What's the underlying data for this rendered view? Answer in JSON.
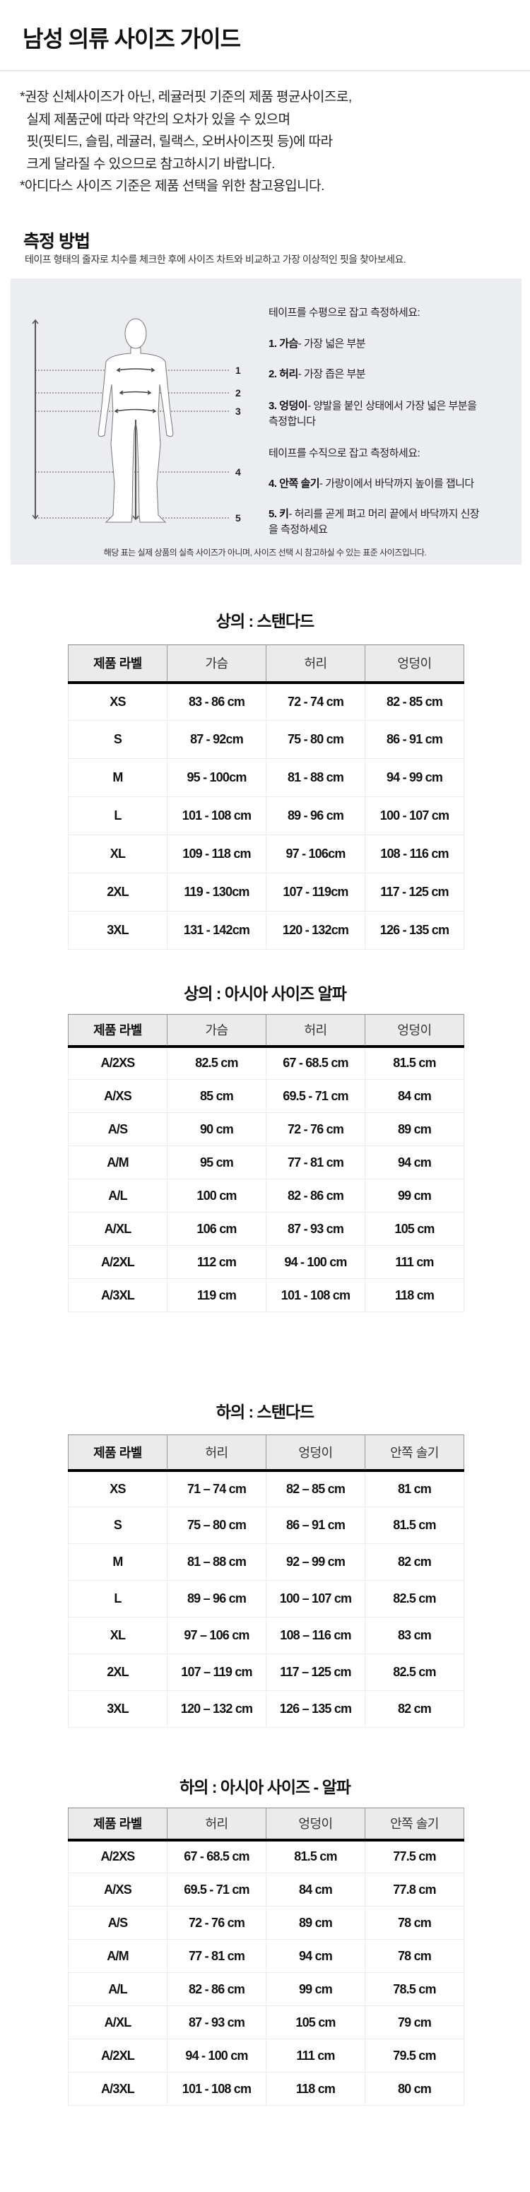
{
  "header": {
    "title": "남성 의류 사이즈 가이드"
  },
  "notes": [
    "*권장 신체사이즈가 아닌, 레귤러핏 기준의 제품 평균사이즈로,",
    "  실제 제품군에 따라 약간의 오차가 있을 수 있으며",
    "  핏(핏티드, 슬림, 레귤러, 릴랙스, 오버사이즈핏 등)에 따라",
    "  크게 달라질 수 있으므로 참고하시기 바랍니다.",
    "*아디다스 사이즈 기준은 제품 선택을 위한 참고용입니다."
  ],
  "method": {
    "title": "측정 방법",
    "subtitle": "테이프 형태의 줄자로 치수를 체크한 후에 사이즈 차트와 비교하고 가장 이상적인 핏을 찾아보세요.",
    "horizontal_intro": "테이프를 수평으로 잡고 측정하세요:",
    "vertical_intro": "테이프를 수직으로 잡고 측정하세요:",
    "items": [
      {
        "label": "1. 가슴",
        "desc": "- 가장 넓은 부분"
      },
      {
        "label": "2. 허리",
        "desc": "- 가장 좁은 부분"
      },
      {
        "label": "3. 엉덩이",
        "desc": "- 양발을 붙인 상태에서 가장 넓은 부분을 측정합니다"
      },
      {
        "label": "4. 안쪽 솔기",
        "desc": "- 가랑이에서 바닥까지 높이를 잽니다"
      },
      {
        "label": "5. 키",
        "desc": "- 허리를 곧게 펴고 머리 끝에서 바닥까지 신장을 측정하세요"
      }
    ],
    "figure_markers": [
      "1",
      "2",
      "3",
      "4",
      "5"
    ],
    "footnote": "해당 표는 실제 상품의 실측 사이즈가 아니며, 사이즈 선택 시 참고하실 수 있는 표준 사이즈입니다."
  },
  "tables": [
    {
      "title": "상의 : 스탠다드",
      "headers": [
        "제품 라벨",
        "가슴",
        "허리",
        "엉덩이"
      ],
      "rows": [
        [
          "XS",
          "83 - 86 cm",
          "72 - 74 cm",
          "82 - 85 cm"
        ],
        [
          "S",
          "87 - 92cm",
          "75 - 80 cm",
          "86 - 91 cm"
        ],
        [
          "M",
          "95 - 100cm",
          "81 - 88 cm",
          "94 - 99 cm"
        ],
        [
          "L",
          "101 - 108 cm",
          "89 - 96 cm",
          "100 - 107 cm"
        ],
        [
          "XL",
          "109 - 118 cm",
          "97 - 106cm",
          "108 - 116 cm"
        ],
        [
          "2XL",
          "119 - 130cm",
          "107 - 119cm",
          "117 - 125 cm"
        ],
        [
          "3XL",
          "131 - 142cm",
          "120 - 132cm",
          "126 - 135 cm"
        ]
      ]
    },
    {
      "title": "상의 : 아시아 사이즈 알파",
      "headers": [
        "제품 라벨",
        "가슴",
        "허리",
        "엉덩이"
      ],
      "rows": [
        [
          "A/2XS",
          "82.5 cm",
          "67 - 68.5 cm",
          "81.5 cm"
        ],
        [
          "A/XS",
          "85 cm",
          "69.5 - 71 cm",
          "84 cm"
        ],
        [
          "A/S",
          "90 cm",
          "72 - 76 cm",
          "89 cm"
        ],
        [
          "A/M",
          "95 cm",
          "77 - 81 cm",
          "94 cm"
        ],
        [
          "A/L",
          "100 cm",
          "82 - 86 cm",
          "99 cm"
        ],
        [
          "A/XL",
          "106 cm",
          "87 - 93 cm",
          "105 cm"
        ],
        [
          "A/2XL",
          "112 cm",
          "94 - 100 cm",
          "111 cm"
        ],
        [
          "A/3XL",
          "119 cm",
          "101 - 108 cm",
          "118 cm"
        ]
      ]
    },
    {
      "title": "하의 : 스탠다드",
      "headers": [
        "제품 라벨",
        "허리",
        "엉덩이",
        "안쪽 솔기"
      ],
      "rows": [
        [
          "XS",
          "71 – 74 cm",
          "82 – 85 cm",
          "81 cm"
        ],
        [
          "S",
          "75 – 80 cm",
          "86 – 91 cm",
          "81.5 cm"
        ],
        [
          "M",
          "81 – 88 cm",
          "92 – 99 cm",
          "82 cm"
        ],
        [
          "L",
          "89 – 96 cm",
          "100 – 107 cm",
          "82.5 cm"
        ],
        [
          "XL",
          "97 – 106 cm",
          "108 – 116 cm",
          "83 cm"
        ],
        [
          "2XL",
          "107 – 119 cm",
          "117 – 125 cm",
          "82.5 cm"
        ],
        [
          "3XL",
          "120 – 132 cm",
          "126 – 135 cm",
          "82 cm"
        ]
      ]
    },
    {
      "title": "하의 : 아시아 사이즈 - 알파",
      "headers": [
        "제품 라벨",
        "허리",
        "엉덩이",
        "안쪽 솔기"
      ],
      "rows": [
        [
          "A/2XS",
          "67 - 68.5 cm",
          "81.5 cm",
          "77.5 cm"
        ],
        [
          "A/XS",
          "69.5 - 71 cm",
          "84 cm",
          "77.8 cm"
        ],
        [
          "A/S",
          "72 - 76 cm",
          "89 cm",
          "78 cm"
        ],
        [
          "A/M",
          "77 - 81 cm",
          "94 cm",
          "78 cm"
        ],
        [
          "A/L",
          "82 - 86 cm",
          "99 cm",
          "78.5 cm"
        ],
        [
          "A/XL",
          "87 - 93 cm",
          "105 cm",
          "79 cm"
        ],
        [
          "A/2XL",
          "94 - 100 cm",
          "111 cm",
          "79.5 cm"
        ],
        [
          "A/3XL",
          "101 - 108 cm",
          "118 cm",
          "80 cm"
        ]
      ]
    }
  ]
}
